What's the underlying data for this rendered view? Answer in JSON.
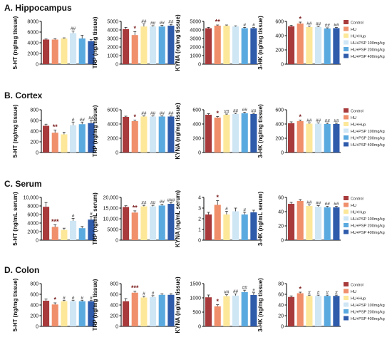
{
  "colors": {
    "Control": "#a83a3c",
    "HU": "#f08f6b",
    "HU+Hup": "#fde89a",
    "HU+PSP 100mg/kg": "#cfe6f5",
    "HU+PSP 200mg/kg": "#5aaae0",
    "HU+PSP 400mg/kg": "#2f5bab"
  },
  "series_names": [
    "Control",
    "HU",
    "HU+Hup",
    "HU+PSP 100mg/kg",
    "HU+PSP 200mg/kg",
    "HU+PSP 400mg/kg"
  ],
  "sections": [
    {
      "title": "A. Hippocampus",
      "panels": [
        {
          "ylabel": "5-HT (ng/mg tissue)",
          "ticks": [
            "0",
            "2000",
            "4000",
            "6000",
            "8000"
          ]
        },
        {
          "ylabel": "TRP (ng/mg tissue)",
          "ticks": [
            "0",
            "1000",
            "2000",
            "3000",
            "4000",
            "5000"
          ]
        },
        {
          "ylabel": "KYNA (ng/mg tissue)",
          "ticks": [
            "0",
            "1000",
            "2000",
            "3000",
            "4000",
            "5000"
          ]
        },
        {
          "ylabel": "3-HK (ng/mg tissue)",
          "ticks": [
            "0",
            "200",
            "400",
            "600"
          ]
        }
      ]
    },
    {
      "title": "B. Cortex",
      "panels": [
        {
          "ylabel": "5-HT (ng/mg tissue)",
          "ticks": [
            "0",
            "200",
            "400",
            "600",
            "800"
          ]
        },
        {
          "ylabel": "TRP (ng/mg tissue)",
          "ticks": [
            "0",
            "2000",
            "4000",
            "6000"
          ]
        },
        {
          "ylabel": "KYNA (ng/mg tissue)",
          "ticks": [
            "0",
            "200",
            "400",
            "600"
          ]
        },
        {
          "ylabel": "3-HK (ng/mg tissue)",
          "ticks": [
            "0",
            "200",
            "400",
            "600"
          ]
        }
      ]
    },
    {
      "title": "C. Serum",
      "panels": [
        {
          "ylabel": "5-HT (ng/mL serum)",
          "ticks": [
            "0",
            "2000",
            "4000",
            "6000",
            "8000",
            "10,000"
          ]
        },
        {
          "ylabel": "TRP (ng/mL serum)",
          "ticks": [
            "0",
            "5000",
            "10,000",
            "15,000",
            "20,000"
          ]
        },
        {
          "ylabel": "KYNA (ng/mL serum)",
          "ticks": [
            "0",
            "1",
            "2",
            "3",
            "4"
          ]
        },
        {
          "ylabel": "3-HK (ng/mL serum)",
          "ticks": [
            "0",
            "20",
            "40",
            "60"
          ]
        }
      ]
    },
    {
      "title": "D. Colon",
      "panels": [
        {
          "ylabel": "5-HT (ng/mg tissue)",
          "ticks": [
            "0",
            "200",
            "400",
            "600",
            "800"
          ]
        },
        {
          "ylabel": "TRP (ng/mg tissue)",
          "ticks": [
            "0",
            "200",
            "400",
            "600",
            "800"
          ]
        },
        {
          "ylabel": "KYNA (ng/mg tissue)",
          "ticks": [
            "0",
            "500",
            "1000",
            "1500"
          ]
        },
        {
          "ylabel": "3-HK (ng/mg tissue)",
          "ticks": [
            "0",
            "20",
            "40",
            "60",
            "80"
          ]
        }
      ]
    }
  ],
  "chart_data": [
    {
      "type": "bar",
      "ylabel": "5-HT (ng/mg tissue)",
      "ylim": [
        0,
        8000
      ],
      "values": [
        4600,
        4600,
        4800,
        5800,
        4800,
        4300
      ],
      "errors": [
        100,
        150,
        120,
        400,
        600,
        300
      ],
      "annotations": [
        "",
        "",
        "",
        "##",
        "",
        ""
      ]
    },
    {
      "type": "bar",
      "ylabel": "TRP (ng/mg tissue)",
      "ylim": [
        0,
        5000
      ],
      "values": [
        4100,
        3400,
        4400,
        4400,
        4400,
        4500
      ],
      "errors": [
        200,
        400,
        300,
        100,
        150,
        150
      ],
      "annotations": [
        "",
        "*",
        "##",
        "##",
        "##",
        "##"
      ]
    },
    {
      "type": "bar",
      "ylabel": "KYNA (ng/mg tissue)",
      "ylim": [
        0,
        5000
      ],
      "values": [
        4200,
        4500,
        4500,
        4400,
        4200,
        4200
      ],
      "errors": [
        100,
        80,
        80,
        80,
        100,
        80
      ],
      "annotations": [
        "",
        "**",
        "",
        "",
        "#",
        "#"
      ]
    },
    {
      "type": "bar",
      "ylabel": "3-HK (ng/mg tissue)",
      "ylim": [
        0,
        600
      ],
      "values": [
        530,
        570,
        520,
        520,
        500,
        505
      ],
      "errors": [
        15,
        20,
        15,
        10,
        10,
        10
      ],
      "annotations": [
        "",
        "*",
        "##",
        "##",
        "##",
        "##"
      ]
    },
    {
      "type": "bar",
      "ylabel": "5-HT (ng/mg tissue)",
      "ylim": [
        0,
        800
      ],
      "values": [
        500,
        370,
        340,
        510,
        530,
        550
      ],
      "errors": [
        30,
        50,
        40,
        60,
        40,
        50
      ],
      "annotations": [
        "",
        "**",
        "",
        "#",
        "##",
        "##"
      ]
    },
    {
      "type": "bar",
      "ylabel": "TRP (ng/mg tissue)",
      "ylim": [
        0,
        6000
      ],
      "values": [
        5000,
        4400,
        5050,
        5050,
        5050,
        5050
      ],
      "errors": [
        100,
        150,
        80,
        80,
        80,
        80
      ],
      "annotations": [
        "",
        "*",
        "##",
        "##",
        "##",
        "##"
      ]
    },
    {
      "type": "bar",
      "ylabel": "KYNA (ng/mg tissue)",
      "ylim": [
        0,
        600
      ],
      "values": [
        530,
        490,
        530,
        540,
        550,
        540
      ],
      "errors": [
        15,
        15,
        10,
        10,
        15,
        10
      ],
      "annotations": [
        "",
        "*",
        "##",
        "##",
        "##",
        "##"
      ]
    },
    {
      "type": "bar",
      "ylabel": "3-HK (ng/mg tissue)",
      "ylim": [
        0,
        600
      ],
      "values": [
        410,
        440,
        405,
        405,
        400,
        400
      ],
      "errors": [
        20,
        15,
        10,
        10,
        10,
        10
      ],
      "annotations": [
        "",
        "*",
        "##",
        "##",
        "##",
        "##"
      ]
    },
    {
      "type": "bar",
      "ylabel": "5-HT (ng/mL serum)",
      "ylim": [
        0,
        10000
      ],
      "values": [
        7800,
        3100,
        2400,
        4500,
        2800,
        4800
      ],
      "errors": [
        1000,
        500,
        400,
        600,
        400,
        800
      ],
      "annotations": [
        "",
        "***",
        "",
        "#",
        "",
        "#"
      ]
    },
    {
      "type": "bar",
      "ylabel": "TRP (ng/mL serum)",
      "ylim": [
        0,
        20000
      ],
      "values": [
        15500,
        12900,
        15800,
        15800,
        16200,
        17000
      ],
      "errors": [
        600,
        800,
        500,
        500,
        600,
        500
      ],
      "annotations": [
        "",
        "**",
        "##",
        "##",
        "##",
        "###"
      ]
    },
    {
      "type": "bar",
      "ylabel": "KYNA (ng/mL serum)",
      "ylim": [
        0,
        4
      ],
      "values": [
        2.4,
        3.3,
        2.4,
        2.7,
        2.4,
        2.6
      ],
      "errors": [
        0.2,
        0.4,
        0.3,
        0.3,
        0.2,
        0.2
      ],
      "annotations": [
        "",
        "*",
        "#",
        "",
        "#",
        ""
      ]
    },
    {
      "type": "bar",
      "ylabel": "3-HK (ng/mL serum)",
      "ylim": [
        0,
        60
      ],
      "values": [
        51,
        55,
        48,
        47,
        46,
        46
      ],
      "errors": [
        2,
        2,
        1.5,
        1.5,
        1.5,
        1.5
      ],
      "annotations": [
        "",
        "",
        "##",
        "##",
        "##",
        "##"
      ]
    },
    {
      "type": "bar",
      "ylabel": "5-HT (ng/mg tissue)",
      "ylim": [
        0,
        800
      ],
      "values": [
        480,
        410,
        470,
        470,
        470,
        470
      ],
      "errors": [
        30,
        30,
        20,
        20,
        20,
        20
      ],
      "annotations": [
        "",
        "*",
        "#",
        "#",
        "#",
        "#"
      ]
    },
    {
      "type": "bar",
      "ylabel": "TRP (ng/mg tissue)",
      "ylim": [
        0,
        800
      ],
      "values": [
        470,
        630,
        540,
        550,
        590,
        590
      ],
      "errors": [
        50,
        30,
        25,
        25,
        20,
        20
      ],
      "annotations": [
        "",
        "***",
        "#",
        "#",
        "",
        ""
      ]
    },
    {
      "type": "bar",
      "ylabel": "KYNA (ng/mg tissue)",
      "ylim": [
        0,
        1500
      ],
      "values": [
        1020,
        700,
        1060,
        1080,
        1200,
        1100
      ],
      "errors": [
        80,
        60,
        50,
        60,
        70,
        80
      ],
      "annotations": [
        "",
        "*",
        "##",
        "##",
        "##",
        "#"
      ]
    },
    {
      "type": "bar",
      "ylabel": "3-HK (ng/mg tissue)",
      "ylim": [
        0,
        80
      ],
      "values": [
        55,
        62,
        57,
        57,
        57,
        57
      ],
      "errors": [
        2,
        2,
        1.5,
        1.5,
        1.5,
        1.5
      ],
      "annotations": [
        "",
        "*",
        "#",
        "#",
        "#",
        "#"
      ]
    }
  ]
}
